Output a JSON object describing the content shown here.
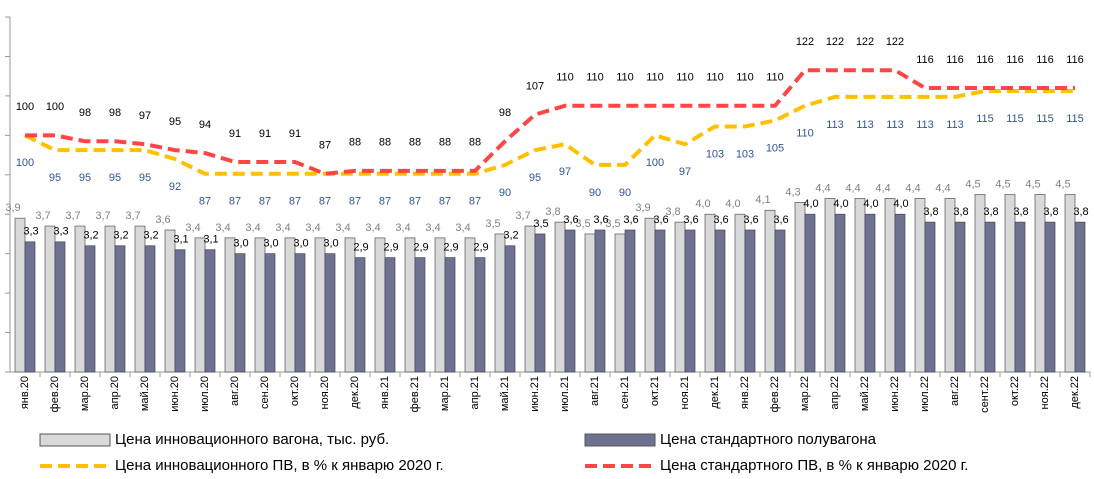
{
  "chart_data": {
    "type": "bar",
    "categories": [
      "янв.20",
      "фев.20",
      "мар.20",
      "апр.20",
      "май.20",
      "июн.20",
      "июл.20",
      "авг.20",
      "сен.20",
      "окт.20",
      "ноя.20",
      "дек.20",
      "янв.21",
      "фев.21",
      "мар.21",
      "апр.21",
      "май.21",
      "июн.21",
      "июл.21",
      "авг.21",
      "сен.21",
      "окт.21",
      "ноя.21",
      "дек.21",
      "янв.22",
      "фев.22",
      "мар.22",
      "апр.22",
      "май.22",
      "июн.22",
      "июл.22",
      "авг.22",
      "сент.22",
      "окт.22",
      "ноя.22",
      "дек.22"
    ],
    "ylim": [
      0,
      9
    ],
    "yticks": [
      0,
      1,
      2,
      3,
      4,
      5,
      6,
      7,
      8,
      9
    ],
    "y2lim": [
      20,
      140
    ],
    "legend": "bottom",
    "series": [
      {
        "name": "Цена инновационного вагона, тыс. руб.",
        "type": "bar",
        "color": "#d9d9d9",
        "values": [
          3.9,
          3.7,
          3.7,
          3.7,
          3.7,
          3.6,
          3.4,
          3.4,
          3.4,
          3.4,
          3.4,
          3.4,
          3.4,
          3.4,
          3.4,
          3.4,
          3.5,
          3.7,
          3.8,
          3.5,
          3.5,
          3.9,
          3.8,
          4.0,
          4.0,
          4.1,
          4.3,
          4.4,
          4.4,
          4.4,
          4.4,
          4.4,
          4.5,
          4.5,
          4.5,
          4.5
        ],
        "value_labels": [
          "3,9",
          "3,7",
          "3,7",
          "3,7",
          "3,7",
          "3,6",
          "3,4",
          "3,4",
          "3,4",
          "3,4",
          "3,4",
          "3,4",
          "3,4",
          "3,4",
          "3,4",
          "3,4",
          "3,5",
          "3,7",
          "3,8",
          "3,5",
          "3,5",
          "3,9",
          "3,8",
          "4,0",
          "4,0",
          "4,1",
          "4,3",
          "4,4",
          "4,4",
          "4,4",
          "4,4",
          "4,4",
          "4,5",
          "4,5",
          "4,5",
          "4,5"
        ]
      },
      {
        "name": "Цена стандартного полувагона",
        "type": "bar",
        "color": "#6e7190",
        "values": [
          3.3,
          3.3,
          3.2,
          3.2,
          3.2,
          3.1,
          3.1,
          3.0,
          3.0,
          3.0,
          3.0,
          2.9,
          2.9,
          2.9,
          2.9,
          2.9,
          3.2,
          3.5,
          3.6,
          3.6,
          3.6,
          3.6,
          3.6,
          3.6,
          3.6,
          3.6,
          4.0,
          4.0,
          4.0,
          4.0,
          3.8,
          3.8,
          3.8,
          3.8,
          3.8,
          3.8
        ],
        "value_labels": [
          "3,3",
          "3,3",
          "3,2",
          "3,2",
          "3,2",
          "3,1",
          "3,1",
          "3,0",
          "3,0",
          "3,0",
          "3,0",
          "2,9",
          "2,9",
          "2,9",
          "2,9",
          "2,9",
          "3,2",
          "3,5",
          "3,6",
          "3,6",
          "3,6",
          "3,6",
          "3,6",
          "3,6",
          "3,6",
          "3,6",
          "4,0",
          "4,0",
          "4,0",
          "4,0",
          "3,8",
          "3,8",
          "3,8",
          "3,8",
          "3,8",
          "3,8"
        ]
      },
      {
        "name": "Цена инновационного ПВ, в % к январю 2020 г.",
        "type": "line",
        "axis": "y2",
        "color": "#ffc000",
        "label_color": "#2f5597",
        "values": [
          100,
          95,
          95,
          95,
          95,
          92,
          87,
          87,
          87,
          87,
          87,
          87,
          87,
          87,
          87,
          87,
          90,
          95,
          97,
          90,
          90,
          100,
          97,
          103,
          103,
          105,
          110,
          113,
          113,
          113,
          113,
          113,
          115,
          115,
          115,
          115
        ]
      },
      {
        "name": "Цена стандартного ПВ, в % к январю 2020 г.",
        "type": "line",
        "axis": "y2",
        "color": "#ff4545",
        "label_color": "#000000",
        "values": [
          100,
          100,
          98,
          98,
          97,
          95,
          94,
          91,
          91,
          91,
          87,
          88,
          88,
          88,
          88,
          88,
          98,
          107,
          110,
          110,
          110,
          110,
          110,
          110,
          110,
          110,
          122,
          122,
          122,
          122,
          116,
          116,
          116,
          116,
          116,
          116
        ]
      }
    ]
  }
}
